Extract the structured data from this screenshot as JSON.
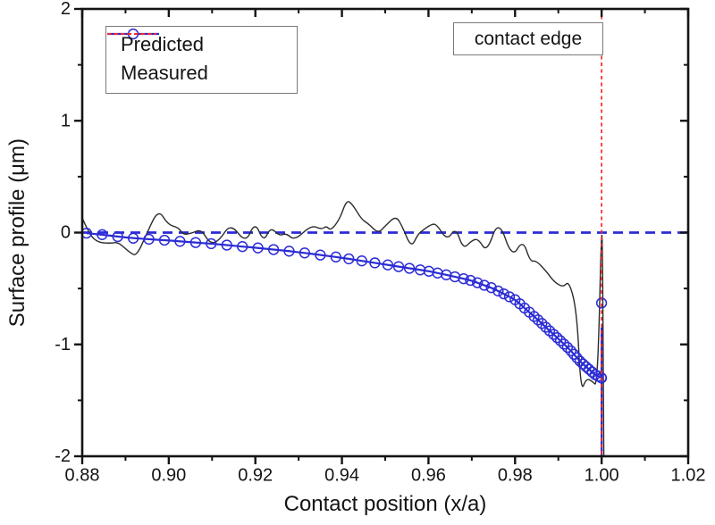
{
  "figure": {
    "background": "#ffffff",
    "axis_color": "#141414"
  },
  "annotation": {
    "contact_edge_label": "contact edge"
  },
  "legend": {
    "position": "top-left",
    "items": [
      {
        "label": "Predicted",
        "swatch": "solid-line-open-circle",
        "color": "#2b2bd5"
      },
      {
        "label": "Measured",
        "swatch": "short-dashed-line",
        "color": "#fa2828"
      }
    ]
  },
  "chart_data": {
    "type": "line",
    "title": "",
    "xlabel": "Contact position (x/a)",
    "ylabel": "Surface profile (μm)",
    "xlim": [
      0.88,
      1.02
    ],
    "ylim": [
      -2,
      2
    ],
    "grid": false,
    "x_axis": {
      "major": [
        0.88,
        0.9,
        0.92,
        0.94,
        0.96,
        0.98,
        1.0,
        1.02
      ],
      "major_labels": [
        "0.88",
        "0.90",
        "0.92",
        "0.94",
        "0.96",
        "0.98",
        "1.00",
        "1.02"
      ],
      "minor": [
        0.89,
        0.91,
        0.93,
        0.95,
        0.97,
        0.99,
        1.01
      ]
    },
    "y_axis": {
      "major": [
        2,
        1,
        0,
        -1,
        -2
      ],
      "major_labels": [
        "2",
        "1",
        "0",
        "-1",
        "-2"
      ],
      "minor": [
        1.5,
        0.5,
        -0.5,
        -1.5
      ]
    },
    "reference_lines": {
      "zero_line": {
        "y": 0,
        "color": "#2b2bd5",
        "style": "dashed"
      },
      "contact_edge_line": {
        "x": 1.0,
        "color": "#fa2828",
        "style": "dashed"
      }
    },
    "series": [
      {
        "name": "Predicted",
        "plot_color": "#2b2bd5",
        "marker": "open-circle",
        "points": [
          [
            0.881,
            -0.005
          ],
          [
            0.8846,
            -0.018
          ],
          [
            0.8882,
            -0.036
          ],
          [
            0.8918,
            -0.05
          ],
          [
            0.8954,
            -0.059
          ],
          [
            0.899,
            -0.068
          ],
          [
            0.9026,
            -0.078
          ],
          [
            0.9062,
            -0.089
          ],
          [
            0.9098,
            -0.099
          ],
          [
            0.9134,
            -0.112
          ],
          [
            0.917,
            -0.125
          ],
          [
            0.9206,
            -0.137
          ],
          [
            0.9242,
            -0.152
          ],
          [
            0.9278,
            -0.166
          ],
          [
            0.9314,
            -0.182
          ],
          [
            0.935,
            -0.2
          ],
          [
            0.9386,
            -0.218
          ],
          [
            0.9416,
            -0.235
          ],
          [
            0.9446,
            -0.253
          ],
          [
            0.9476,
            -0.271
          ],
          [
            0.9506,
            -0.289
          ],
          [
            0.9531,
            -0.304
          ],
          [
            0.9556,
            -0.319
          ],
          [
            0.9581,
            -0.334
          ],
          [
            0.9601,
            -0.346
          ],
          [
            0.9621,
            -0.362
          ],
          [
            0.9641,
            -0.378
          ],
          [
            0.9661,
            -0.395
          ],
          [
            0.9681,
            -0.413
          ],
          [
            0.9697,
            -0.427
          ],
          [
            0.9713,
            -0.448
          ],
          [
            0.9729,
            -0.471
          ],
          [
            0.9745,
            -0.493
          ],
          [
            0.9761,
            -0.522
          ],
          [
            0.9774,
            -0.548
          ],
          [
            0.9787,
            -0.574
          ],
          [
            0.98,
            -0.6
          ],
          [
            0.9811,
            -0.637
          ],
          [
            0.9822,
            -0.675
          ],
          [
            0.9833,
            -0.712
          ],
          [
            0.9844,
            -0.75
          ],
          [
            0.9853,
            -0.781
          ],
          [
            0.9862,
            -0.813
          ],
          [
            0.9871,
            -0.846
          ],
          [
            0.988,
            -0.878
          ],
          [
            0.9889,
            -0.91
          ],
          [
            0.9897,
            -0.939
          ],
          [
            0.9905,
            -0.968
          ],
          [
            0.9913,
            -0.997
          ],
          [
            0.9921,
            -1.026
          ],
          [
            0.9929,
            -1.058
          ],
          [
            0.9936,
            -1.088
          ],
          [
            0.9943,
            -1.119
          ],
          [
            0.995,
            -1.15
          ],
          [
            0.9957,
            -1.175
          ],
          [
            0.9964,
            -1.199
          ],
          [
            0.9971,
            -1.223
          ],
          [
            0.9978,
            -1.247
          ],
          [
            0.9985,
            -1.27
          ],
          [
            0.9992,
            -1.284
          ],
          [
            0.9999,
            -1.298
          ],
          [
            1.0,
            -1.3
          ],
          [
            1.0,
            -0.63
          ]
        ],
        "line_tail": [
          [
            1.0,
            -2.0
          ]
        ]
      },
      {
        "name": "Measured",
        "plot_color": "#2b2b2b",
        "marker": "none",
        "points": [
          [
            0.88,
            0.13
          ],
          [
            0.8817,
            -0.02
          ],
          [
            0.8837,
            -0.09
          ],
          [
            0.8866,
            -0.096
          ],
          [
            0.8883,
            -0.084
          ],
          [
            0.891,
            -0.18
          ],
          [
            0.8926,
            -0.21
          ],
          [
            0.895,
            0.0
          ],
          [
            0.8976,
            0.21
          ],
          [
            0.8998,
            0.07
          ],
          [
            0.9023,
            0.045
          ],
          [
            0.9033,
            -0.02
          ],
          [
            0.9054,
            -0.005
          ],
          [
            0.9075,
            0.03
          ],
          [
            0.9095,
            -0.1
          ],
          [
            0.9116,
            -0.075
          ],
          [
            0.9143,
            0.085
          ],
          [
            0.9178,
            -0.098
          ],
          [
            0.9199,
            0.1
          ],
          [
            0.9219,
            -0.086
          ],
          [
            0.9235,
            0.05
          ],
          [
            0.9255,
            -0.03
          ],
          [
            0.9271,
            -0.005
          ],
          [
            0.9291,
            -0.072
          ],
          [
            0.9329,
            0.068
          ],
          [
            0.9353,
            0.028
          ],
          [
            0.9364,
            0.06
          ],
          [
            0.9374,
            0.016
          ],
          [
            0.9395,
            0.12
          ],
          [
            0.9411,
            0.295
          ],
          [
            0.9425,
            0.25
          ],
          [
            0.9445,
            0.12
          ],
          [
            0.9461,
            0.08
          ],
          [
            0.9484,
            -0.008
          ],
          [
            0.95,
            0.06
          ],
          [
            0.9525,
            0.152
          ],
          [
            0.954,
            0.05
          ],
          [
            0.956,
            -0.136
          ],
          [
            0.9575,
            -0.02
          ],
          [
            0.9585,
            0.016
          ],
          [
            0.9605,
            0.07
          ],
          [
            0.9618,
            0.08
          ],
          [
            0.9643,
            -0.072
          ],
          [
            0.9663,
            0.048
          ],
          [
            0.968,
            -0.15
          ],
          [
            0.97,
            -0.07
          ],
          [
            0.9715,
            -0.055
          ],
          [
            0.9735,
            -0.18
          ],
          [
            0.9762,
            0.125
          ],
          [
            0.9793,
            -0.23
          ],
          [
            0.9818,
            -0.06
          ],
          [
            0.9835,
            -0.26
          ],
          [
            0.9849,
            -0.25
          ],
          [
            0.9874,
            -0.355
          ],
          [
            0.989,
            -0.44
          ],
          [
            0.9911,
            -0.49
          ],
          [
            0.9925,
            -0.43
          ],
          [
            0.9943,
            -0.71
          ],
          [
            0.9952,
            -1.43
          ],
          [
            0.9965,
            -1.3
          ],
          [
            0.998,
            -1.335
          ],
          [
            0.9988,
            -1.37
          ],
          [
            0.9994,
            -0.9
          ],
          [
            0.9999,
            -0.05
          ],
          [
            1.0002,
            0.0
          ],
          [
            1.0005,
            -2.0
          ]
        ]
      }
    ]
  }
}
